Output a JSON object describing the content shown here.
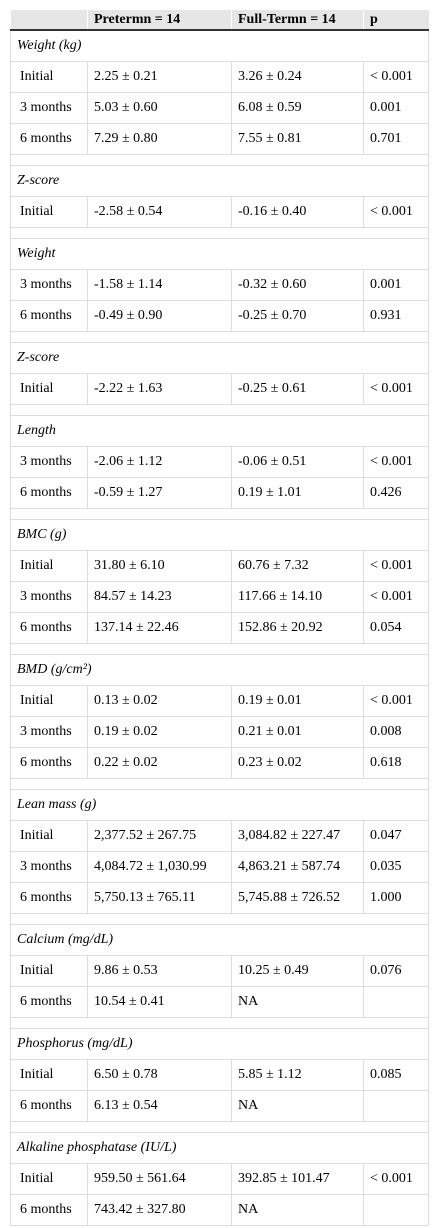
{
  "table": {
    "header": [
      "Pretermn = 14",
      "Full-Termn = 14",
      "p"
    ],
    "sections": [
      {
        "title": "Weight (kg)",
        "rows": [
          [
            "Initial",
            "2.25 ± 0.21",
            "3.26 ± 0.24",
            "< 0.001"
          ],
          [
            "3 months",
            "5.03 ± 0.60",
            "6.08 ± 0.59",
            "0.001"
          ],
          [
            "6 months",
            "7.29 ± 0.80",
            "7.55 ± 0.81",
            "0.701"
          ]
        ]
      },
      {
        "title": "Z-score",
        "rows": [
          [
            "Initial",
            "-2.58 ± 0.54",
            "-0.16 ± 0.40",
            "< 0.001"
          ]
        ]
      },
      {
        "title": "Weight",
        "rows": [
          [
            "3 months",
            "-1.58 ± 1.14",
            "-0.32 ± 0.60",
            "0.001"
          ],
          [
            "6 months",
            "-0.49 ± 0.90",
            "-0.25 ± 0.70",
            "0.931"
          ]
        ]
      },
      {
        "title": "Z-score",
        "rows": [
          [
            "Initial",
            "-2.22 ± 1.63",
            "-0.25 ± 0.61",
            "< 0.001"
          ]
        ]
      },
      {
        "title": "Length",
        "rows": [
          [
            "3 months",
            "-2.06 ± 1.12",
            "-0.06 ± 0.51",
            "< 0.001"
          ],
          [
            "6 months",
            "-0.59 ± 1.27",
            "0.19 ± 1.01",
            "0.426"
          ]
        ]
      },
      {
        "title": "BMC (g)",
        "rows": [
          [
            "Initial",
            "31.80 ± 6.10",
            "60.76 ± 7.32",
            "< 0.001"
          ],
          [
            "3 months",
            "84.57 ± 14.23",
            "117.66 ± 14.10",
            "< 0.001"
          ],
          [
            "6 months",
            "137.14 ± 22.46",
            "152.86 ± 20.92",
            "0.054"
          ]
        ]
      },
      {
        "title": "BMD (g/cm²)",
        "rows": [
          [
            "Initial",
            "0.13 ± 0.02",
            "0.19 ± 0.01",
            "< 0.001"
          ],
          [
            "3 months",
            "0.19 ± 0.02",
            "0.21 ± 0.01",
            "0.008"
          ],
          [
            "6 months",
            "0.22 ± 0.02",
            "0.23 ± 0.02",
            "0.618"
          ]
        ]
      },
      {
        "title": "Lean mass (g)",
        "rows": [
          [
            "Initial",
            "2,377.52 ± 267.75",
            "3,084.82 ± 227.47",
            "0.047"
          ],
          [
            "3 months",
            "4,084.72 ± 1,030.99",
            "4,863.21 ± 587.74",
            "0.035"
          ],
          [
            "6 months",
            "5,750.13 ± 765.11",
            "5,745.88 ± 726.52",
            "1.000"
          ]
        ]
      },
      {
        "title": "Calcium (mg/dL)",
        "rows": [
          [
            "Initial",
            "9.86 ± 0.53",
            "10.25 ± 0.49",
            "0.076"
          ],
          [
            "6 months",
            "10.54 ± 0.41",
            "NA"
          ]
        ]
      },
      {
        "title": "Phosphorus (mg/dL)",
        "rows": [
          [
            "Initial",
            "6.50 ± 0.78",
            "5.85 ± 1.12",
            "0.085"
          ],
          [
            "6 months",
            "6.13 ± 0.54",
            "NA"
          ]
        ]
      },
      {
        "title": "Alkaline phosphatase (IU/L)",
        "rows": [
          [
            "Initial",
            "959.50 ± 561.64",
            "392.85 ± 101.47",
            "< 0.001"
          ],
          [
            "6 months",
            "743.42 ± 327.80",
            "NA"
          ]
        ]
      }
    ]
  }
}
